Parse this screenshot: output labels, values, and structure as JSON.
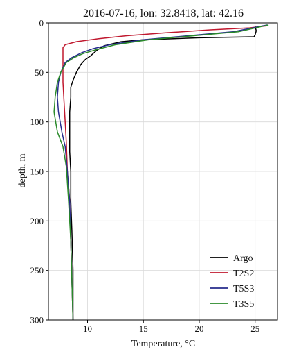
{
  "chart_data": {
    "type": "line",
    "title": "2016-07-16, lon: 32.8418,  lat: 42.16",
    "xlabel": "Temperature, °C",
    "ylabel": "depth, m",
    "xlim": [
      6.5,
      27
    ],
    "ylim": [
      300,
      0
    ],
    "x_ticks": [
      10,
      15,
      20,
      25
    ],
    "y_ticks": [
      0,
      50,
      100,
      150,
      200,
      250,
      300
    ],
    "grid": true,
    "legend_position": "bottom-right",
    "series": [
      {
        "name": "Argo",
        "color": "#000000",
        "points": [
          [
            25.0,
            3
          ],
          [
            25.1,
            8
          ],
          [
            25.0,
            12
          ],
          [
            24.9,
            14
          ],
          [
            20.0,
            15
          ],
          [
            15.0,
            17
          ],
          [
            13.0,
            19
          ],
          [
            11.5,
            23
          ],
          [
            10.8,
            28
          ],
          [
            10.3,
            33
          ],
          [
            9.8,
            37
          ],
          [
            9.4,
            42
          ],
          [
            9.0,
            50
          ],
          [
            8.7,
            58
          ],
          [
            8.5,
            65
          ],
          [
            8.5,
            75
          ],
          [
            8.4,
            90
          ],
          [
            8.4,
            110
          ],
          [
            8.4,
            130
          ],
          [
            8.5,
            150
          ],
          [
            8.5,
            180
          ],
          [
            8.6,
            210
          ],
          [
            8.7,
            250
          ],
          [
            8.7,
            300
          ]
        ]
      },
      {
        "name": "T2S2",
        "color": "#c0182e",
        "points": [
          [
            26.0,
            3
          ],
          [
            24.5,
            5
          ],
          [
            21.0,
            7
          ],
          [
            17.0,
            10
          ],
          [
            13.5,
            13
          ],
          [
            11.0,
            16
          ],
          [
            9.0,
            19
          ],
          [
            8.0,
            22
          ],
          [
            7.8,
            25
          ],
          [
            7.8,
            30
          ],
          [
            7.8,
            40
          ],
          [
            7.8,
            60
          ],
          [
            7.9,
            80
          ],
          [
            8.0,
            100
          ],
          [
            8.1,
            120
          ],
          [
            8.2,
            150
          ],
          [
            8.4,
            180
          ],
          [
            8.5,
            220
          ],
          [
            8.6,
            260
          ],
          [
            8.7,
            300
          ]
        ]
      },
      {
        "name": "T5S3",
        "color": "#262c8c",
        "points": [
          [
            26.1,
            2
          ],
          [
            23.0,
            9
          ],
          [
            19.0,
            13
          ],
          [
            15.0,
            17
          ],
          [
            12.0,
            22
          ],
          [
            10.5,
            26
          ],
          [
            9.5,
            30
          ],
          [
            8.6,
            35
          ],
          [
            8.0,
            40
          ],
          [
            7.6,
            50
          ],
          [
            7.4,
            60
          ],
          [
            7.3,
            75
          ],
          [
            7.4,
            90
          ],
          [
            7.7,
            110
          ],
          [
            8.0,
            125
          ],
          [
            8.2,
            150
          ],
          [
            8.4,
            180
          ],
          [
            8.5,
            220
          ],
          [
            8.6,
            260
          ],
          [
            8.7,
            300
          ]
        ]
      },
      {
        "name": "T3S5",
        "color": "#2a8a2a",
        "points": [
          [
            26.2,
            2
          ],
          [
            23.5,
            9
          ],
          [
            19.5,
            13
          ],
          [
            15.5,
            17
          ],
          [
            12.5,
            22
          ],
          [
            10.8,
            27
          ],
          [
            9.6,
            31
          ],
          [
            8.8,
            35
          ],
          [
            8.1,
            40
          ],
          [
            7.6,
            50
          ],
          [
            7.3,
            60
          ],
          [
            7.1,
            75
          ],
          [
            7.0,
            90
          ],
          [
            7.3,
            110
          ],
          [
            7.8,
            125
          ],
          [
            8.1,
            145
          ],
          [
            8.3,
            180
          ],
          [
            8.5,
            220
          ],
          [
            8.6,
            260
          ],
          [
            8.7,
            300
          ]
        ]
      }
    ]
  }
}
